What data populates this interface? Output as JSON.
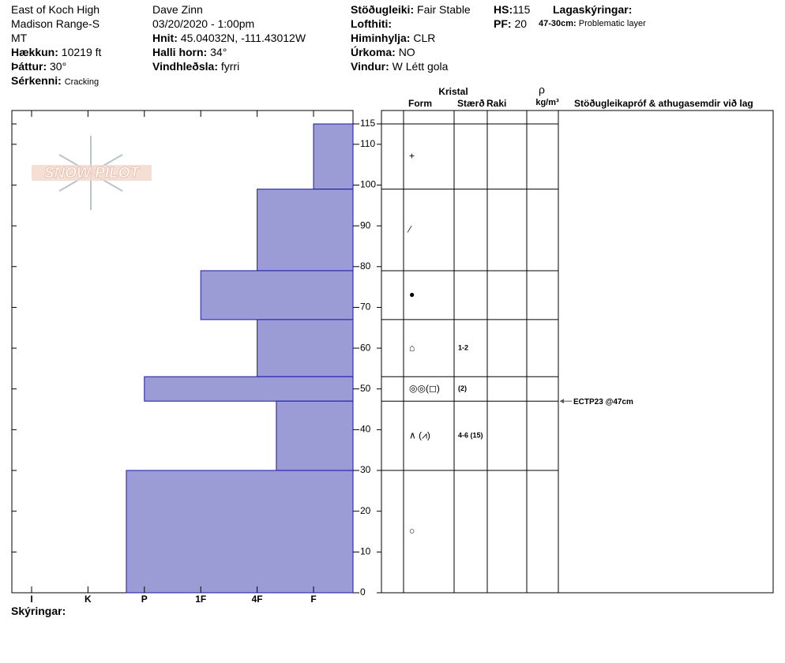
{
  "header": {
    "location": [
      "East of Koch High",
      "Madison Range-S",
      "MT"
    ],
    "elevation": {
      "label": "Hækkun:",
      "value": "10219 ft"
    },
    "aspect": {
      "label": "Þáttur:",
      "value": "30°"
    },
    "features": {
      "label": "Sérkenni:",
      "value": "Cracking"
    },
    "observer": "Dave Zinn",
    "datetime": "03/20/2020 - 1:00pm",
    "coords": {
      "label": "Hnit:",
      "value": "45.04032N, -111.43012W"
    },
    "slope": {
      "label": "Halli horn:",
      "value": "34°"
    },
    "wind_loading": {
      "label": "Vindhleðsla:",
      "value": "fyrri"
    },
    "stability": {
      "label": "Stöðugleiki:",
      "value": "Fair Stable"
    },
    "air_temp": {
      "label": "Lofthiti:"
    },
    "sky": {
      "label": "Himinhylja:",
      "value": "CLR"
    },
    "precip": {
      "label": "Úrkoma:",
      "value": "NO"
    },
    "wind": {
      "label": "Vindur:",
      "value": "W Létt gola"
    },
    "hs": {
      "label": "HS:",
      "value": 115
    },
    "pf": {
      "label": "PF:",
      "value": 20
    },
    "layer_notes_title": "Lagaskýringar:",
    "layer_notes": [
      {
        "range": "47-30cm:",
        "text": "Problematic layer"
      }
    ],
    "notes_label": "Skýringar:"
  },
  "logo": "SNOW PILOT",
  "table_headers": {
    "crystal": "Kristal",
    "form": "Form",
    "size": "Stærð",
    "moisture": "Raki",
    "rho": "ρ",
    "density_unit": "kg/m³",
    "tests": "Stöðugleikapróf & athugasemdir við lag"
  },
  "chart_data": {
    "type": "snow-profile",
    "ylim": [
      0,
      115
    ],
    "yticks": [
      0,
      10,
      20,
      30,
      40,
      50,
      60,
      70,
      80,
      90,
      100,
      110,
      115
    ],
    "xlim": [
      0.3,
      6.35
    ],
    "xticks": [
      {
        "value": 6,
        "label": "I"
      },
      {
        "value": 5,
        "label": "K"
      },
      {
        "value": 4,
        "label": "P"
      },
      {
        "value": 3,
        "label": "1F"
      },
      {
        "value": 2,
        "label": "4F"
      },
      {
        "value": 1,
        "label": "F"
      }
    ],
    "color": "#9b9bd6",
    "layers": [
      {
        "top": 115,
        "bottom": 99,
        "hardness": 1,
        "form": "+"
      },
      {
        "top": 99,
        "bottom": 79,
        "hardness": 2,
        "form": "⁄"
      },
      {
        "top": 79,
        "bottom": 67,
        "hardness": 3,
        "form": "●"
      },
      {
        "top": 67,
        "bottom": 53,
        "hardness": 2,
        "form": "⌂",
        "size": "1-2"
      },
      {
        "top": 53,
        "bottom": 47,
        "hardness": 4,
        "form": "◎◎(◻)",
        "size": "(2)"
      },
      {
        "top": 47,
        "bottom": 30,
        "hardness": 1.66,
        "form": "∧ (⩘)",
        "size": "4-6 (15)"
      },
      {
        "top": 30,
        "bottom": 0,
        "hardness": 4.32,
        "form": "○"
      }
    ],
    "tests": [
      {
        "label": "ECTP23 @47cm",
        "depth": 47
      }
    ]
  }
}
